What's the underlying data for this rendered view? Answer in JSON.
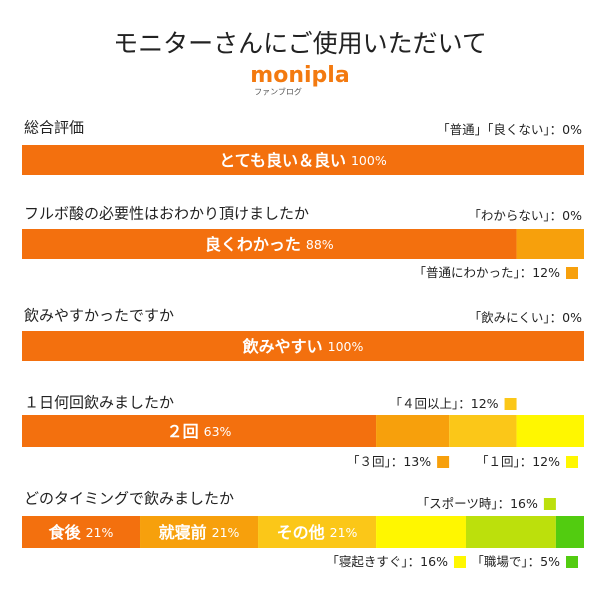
{
  "header": {
    "title": "モニターさんにご使用いただいて",
    "logo": "monipla",
    "logo_sub": "ファンブログ"
  },
  "chart_data": [
    {
      "type": "bar",
      "title": "総合評価",
      "xlim": [
        0,
        100
      ],
      "series": [
        {
          "name": "とても良い＆良い",
          "color": "#f3700e",
          "values": [
            100
          ],
          "value_labels": [
            "100%"
          ]
        },
        {
          "name": "「普通」「良くない」：",
          "values": [
            0
          ],
          "value_labels": [
            "0%"
          ]
        }
      ]
    },
    {
      "type": "bar",
      "title": "フルボ酸の必要性はおわかり頂けましたか",
      "xlim": [
        0,
        100
      ],
      "series": [
        {
          "name": "良くわかった",
          "color": "#f3700e",
          "values": [
            88
          ],
          "value_labels": [
            "88%"
          ]
        },
        {
          "name": "「普通にわかった」：",
          "color": "#f7a00c",
          "values": [
            12
          ],
          "value_labels": [
            "12%"
          ]
        },
        {
          "name": "「わからない」：",
          "values": [
            0
          ],
          "value_labels": [
            "0%"
          ]
        }
      ]
    },
    {
      "type": "bar",
      "title": "飲みやすかったですか",
      "xlim": [
        0,
        100
      ],
      "series": [
        {
          "name": "飲みやすい",
          "color": "#f3700e",
          "values": [
            100
          ],
          "value_labels": [
            "100%"
          ]
        },
        {
          "name": "「飲みにくい」：",
          "values": [
            0
          ],
          "value_labels": [
            "0%"
          ]
        }
      ]
    },
    {
      "type": "bar",
      "title": "１日何回飲みましたか",
      "xlim": [
        0,
        100
      ],
      "series": [
        {
          "name": "２回",
          "color": "#f3700e",
          "values": [
            63
          ],
          "value_labels": [
            "63%"
          ]
        },
        {
          "name": "「３回」：",
          "color": "#f7a00c",
          "values": [
            13
          ],
          "value_labels": [
            "13%"
          ]
        },
        {
          "name": "「４回以上」：",
          "color": "#fbc718",
          "values": [
            12
          ],
          "value_labels": [
            "12%"
          ]
        },
        {
          "name": "「１回」：",
          "color": "#fff700",
          "values": [
            12
          ],
          "value_labels": [
            "12%"
          ]
        }
      ]
    },
    {
      "type": "bar",
      "title": "どのタイミングで飲みましたか",
      "xlim": [
        0,
        100
      ],
      "series": [
        {
          "name": "食後",
          "color": "#f3700e",
          "values": [
            21
          ],
          "value_labels": [
            "21%"
          ]
        },
        {
          "name": "就寝前",
          "color": "#f7a00c",
          "values": [
            21
          ],
          "value_labels": [
            "21%"
          ]
        },
        {
          "name": "その他",
          "color": "#fbc718",
          "values": [
            21
          ],
          "value_labels": [
            "21%"
          ]
        },
        {
          "name": "「寝起きすぐ」：",
          "color": "#fff700",
          "values": [
            16
          ],
          "value_labels": [
            "16%"
          ]
        },
        {
          "name": "「スポーツ時」：",
          "color": "#bce00c",
          "values": [
            16
          ],
          "value_labels": [
            "16%"
          ]
        },
        {
          "name": "「職場で」：",
          "color": "#52cc10",
          "values": [
            5
          ],
          "value_labels": [
            "5%"
          ]
        }
      ]
    }
  ]
}
